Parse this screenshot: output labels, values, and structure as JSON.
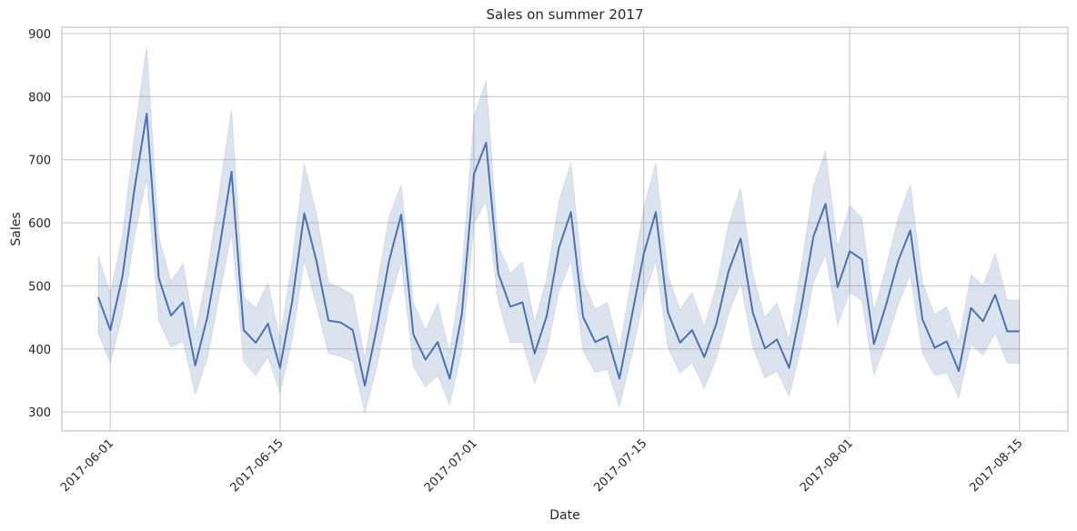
{
  "chart_data": {
    "type": "line",
    "title": "Sales on summer 2017",
    "xlabel": "Date",
    "ylabel": "Sales",
    "x_start": "2017-05-31",
    "x_end": "2017-08-15",
    "xlim": [
      "2017-05-28",
      "2017-08-19"
    ],
    "ylim": [
      270,
      910
    ],
    "x_ticks": [
      "2017-06-01",
      "2017-06-15",
      "2017-07-01",
      "2017-07-15",
      "2017-08-01",
      "2017-08-15"
    ],
    "y_ticks": [
      300,
      400,
      500,
      600,
      700,
      800,
      900
    ],
    "grid": true,
    "legend": "none",
    "colors": {
      "line": "#4c72b0",
      "band": "#4c72b0",
      "grid": "#cccccc"
    },
    "series": [
      {
        "values": [
          482,
          430,
          515,
          655,
          773,
          512,
          453,
          474,
          374,
          450,
          560,
          681,
          430,
          410,
          440,
          370,
          475,
          615,
          540,
          445,
          442,
          430,
          342,
          435,
          540,
          613,
          423,
          383,
          411,
          353,
          455,
          677,
          727,
          520,
          467,
          474,
          393,
          452,
          560,
          617,
          451,
          411,
          420,
          353,
          450,
          550,
          617,
          458,
          410,
          430,
          387,
          440,
          523,
          575,
          458,
          401,
          415,
          370,
          465,
          578,
          630,
          498,
          555,
          542,
          408,
          470,
          540,
          588,
          447,
          402,
          412,
          365,
          465,
          444,
          486,
          428,
          428
        ],
        "lower": [
          425,
          378,
          455,
          580,
          670,
          445,
          403,
          412,
          328,
          385,
          485,
          585,
          380,
          358,
          388,
          330,
          415,
          540,
          470,
          393,
          388,
          380,
          299,
          373,
          470,
          538,
          372,
          340,
          358,
          312,
          398,
          598,
          635,
          475,
          410,
          410,
          345,
          395,
          490,
          540,
          398,
          363,
          368,
          308,
          388,
          480,
          540,
          403,
          362,
          378,
          338,
          385,
          455,
          505,
          403,
          354,
          365,
          325,
          403,
          505,
          550,
          438,
          490,
          477,
          358,
          410,
          470,
          518,
          393,
          358,
          362,
          323,
          408,
          390,
          425,
          378,
          377
        ],
        "upper": [
          547,
          488,
          580,
          740,
          880,
          578,
          507,
          535,
          425,
          520,
          650,
          780,
          482,
          465,
          505,
          415,
          540,
          693,
          615,
          505,
          497,
          485,
          385,
          500,
          610,
          660,
          474,
          430,
          472,
          395,
          520,
          768,
          825,
          565,
          520,
          538,
          442,
          512,
          633,
          695,
          508,
          463,
          474,
          400,
          512,
          623,
          695,
          517,
          462,
          490,
          435,
          500,
          597,
          655,
          518,
          450,
          473,
          415,
          530,
          658,
          714,
          562,
          627,
          608,
          460,
          530,
          608,
          660,
          505,
          455,
          467,
          412,
          518,
          500,
          551,
          478,
          477
        ]
      }
    ]
  }
}
